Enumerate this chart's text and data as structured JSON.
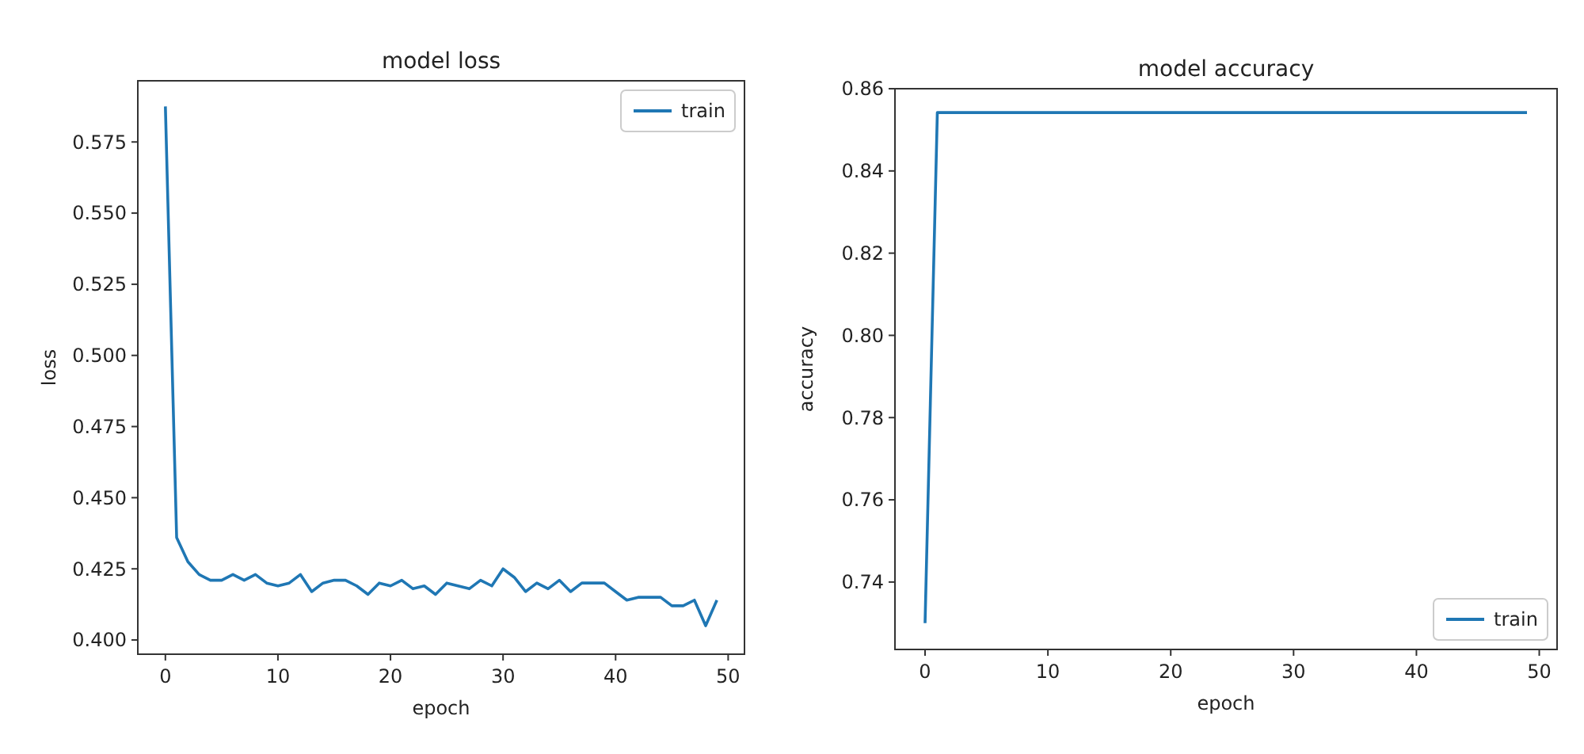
{
  "chart_data": [
    {
      "type": "line",
      "title": "model loss",
      "xlabel": "epoch",
      "ylabel": "loss",
      "x": [
        0,
        1,
        2,
        3,
        4,
        5,
        6,
        7,
        8,
        9,
        10,
        11,
        12,
        13,
        14,
        15,
        16,
        17,
        18,
        19,
        20,
        21,
        22,
        23,
        24,
        25,
        26,
        27,
        28,
        29,
        30,
        31,
        32,
        33,
        34,
        35,
        36,
        37,
        38,
        39,
        40,
        41,
        42,
        43,
        44,
        45,
        46,
        47,
        48,
        49
      ],
      "series": [
        {
          "name": "train",
          "color": "#1f77b4",
          "values": [
            0.5875,
            0.436,
            0.4275,
            0.423,
            0.421,
            0.421,
            0.423,
            0.421,
            0.423,
            0.42,
            0.419,
            0.42,
            0.423,
            0.417,
            0.42,
            0.421,
            0.421,
            0.419,
            0.416,
            0.42,
            0.419,
            0.421,
            0.418,
            0.419,
            0.416,
            0.42,
            0.419,
            0.418,
            0.421,
            0.419,
            0.425,
            0.422,
            0.417,
            0.42,
            0.418,
            0.421,
            0.417,
            0.42,
            0.42,
            0.42,
            0.417,
            0.414,
            0.415,
            0.415,
            0.415,
            0.412,
            0.412,
            0.414,
            0.405,
            0.414
          ]
        }
      ],
      "xlim": [
        -2.45,
        51.45
      ],
      "xticks": [
        0,
        10,
        20,
        30,
        40,
        50
      ],
      "ylim": [
        0.395,
        0.5965
      ],
      "yticks": [
        {
          "value": 0.4,
          "label": "0.400"
        },
        0.425,
        {
          "value": 0.45,
          "label": "0.450"
        },
        0.475,
        {
          "value": 0.5,
          "label": "0.500"
        },
        0.525,
        {
          "value": 0.55,
          "label": "0.550"
        },
        0.575
      ],
      "legend": "top right"
    },
    {
      "type": "line",
      "title": "model accuracy",
      "xlabel": "epoch",
      "ylabel": "accuracy",
      "x": [
        0,
        1,
        2,
        3,
        4,
        5,
        6,
        7,
        8,
        9,
        10,
        11,
        12,
        13,
        14,
        15,
        16,
        17,
        18,
        19,
        20,
        21,
        22,
        23,
        24,
        25,
        26,
        27,
        28,
        29,
        30,
        31,
        32,
        33,
        34,
        35,
        36,
        37,
        38,
        39,
        40,
        41,
        42,
        43,
        44,
        45,
        46,
        47,
        48,
        49
      ],
      "series": [
        {
          "name": "train",
          "color": "#1f77b4",
          "values": [
            0.73,
            0.8542,
            0.8542,
            0.8542,
            0.8542,
            0.8542,
            0.8542,
            0.8542,
            0.8542,
            0.8542,
            0.8542,
            0.8542,
            0.8542,
            0.8542,
            0.8542,
            0.8542,
            0.8542,
            0.8542,
            0.8542,
            0.8542,
            0.8542,
            0.8542,
            0.8542,
            0.8542,
            0.8542,
            0.8542,
            0.8542,
            0.8542,
            0.8542,
            0.8542,
            0.8542,
            0.8542,
            0.8542,
            0.8542,
            0.8542,
            0.8542,
            0.8542,
            0.8542,
            0.8542,
            0.8542,
            0.8542,
            0.8542,
            0.8542,
            0.8542,
            0.8542,
            0.8542,
            0.8542,
            0.8542,
            0.8542,
            0.8542
          ]
        }
      ],
      "xlim": [
        -2.45,
        51.45
      ],
      "xticks": [
        0,
        10,
        20,
        30,
        40,
        50
      ],
      "ylim": [
        0.7236,
        0.86
      ],
      "yticks": [
        0.74,
        0.76,
        0.78,
        {
          "value": 0.8,
          "label": "0.80"
        },
        0.82,
        0.84,
        0.86
      ],
      "legend": "bottom right"
    }
  ]
}
